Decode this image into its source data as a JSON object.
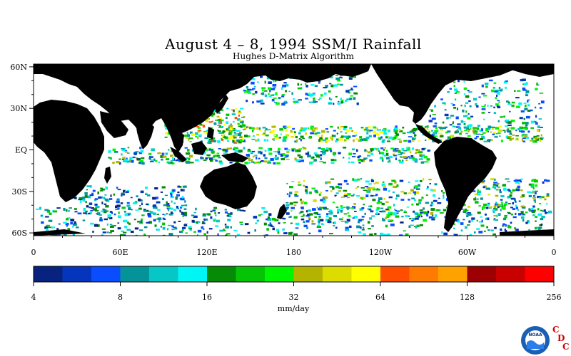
{
  "title": "August 4 – 8, 1994 SSM/I Rainfall",
  "subtitle": "Hughes D-Matrix Algorithm",
  "map": {
    "lat_labels": [
      "60N",
      "30N",
      "EQ",
      "30S",
      "60S"
    ],
    "lat_values": [
      60,
      30,
      0,
      -30,
      -60
    ],
    "lon_labels": [
      "0",
      "60E",
      "120E",
      "180",
      "120W",
      "60W",
      "0"
    ],
    "lon_values": [
      0,
      60,
      120,
      180,
      240,
      300,
      360
    ],
    "lat_range": [
      -62,
      62
    ],
    "lon_range": [
      0,
      360
    ],
    "land_color": "#000000",
    "ocean_color": "#ffffff"
  },
  "colorbar": {
    "unit_label": "mm/day",
    "tick_labels": [
      "4",
      "8",
      "16",
      "32",
      "64",
      "128",
      "256"
    ],
    "colors": [
      "#08237f",
      "#0535bd",
      "#0a4dff",
      "#05939a",
      "#06c6c6",
      "#00f5f5",
      "#058b05",
      "#05c305",
      "#00f500",
      "#b4b400",
      "#dcdc00",
      "#ffff00",
      "#ff4e00",
      "#ff7a00",
      "#ffa200",
      "#9c0000",
      "#c90000",
      "#ff0000"
    ]
  },
  "logo": {
    "text": "NOAA",
    "letters": [
      "C",
      "D",
      "C"
    ],
    "colors": {
      "ring": "#1a5fb4",
      "inner": "#ffffff",
      "wave": "#2b7de9"
    }
  }
}
